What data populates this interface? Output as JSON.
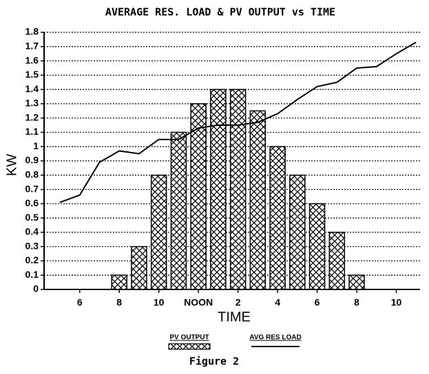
{
  "chart_data": {
    "type": "bar",
    "title": "AVERAGE RES. LOAD & PV OUTPUT vs TIME",
    "xlabel": "TIME",
    "ylabel": "KW",
    "caption": "Figure 2",
    "xlim": [
      4.2,
      23.2
    ],
    "ylim": [
      0,
      1.8
    ],
    "xticks": [
      6,
      8,
      10,
      {
        "value": 12,
        "label": "NOON"
      },
      {
        "value": 14,
        "label": "2"
      },
      {
        "value": 16,
        "label": "4"
      },
      {
        "value": 18,
        "label": "6"
      },
      {
        "value": 20,
        "label": "8"
      },
      {
        "value": 22,
        "label": "10"
      }
    ],
    "yticks": [
      0,
      0.1,
      0.2,
      0.3,
      0.4,
      0.5,
      0.6,
      0.7,
      0.8,
      0.9,
      1,
      1.1,
      1.2,
      1.3,
      1.4,
      1.5,
      1.6,
      1.7,
      1.8
    ],
    "grid": true,
    "series": [
      {
        "name": "PV OUTPUT",
        "type": "bar",
        "color": "#000000",
        "x": [
          8,
          9,
          10,
          11,
          12,
          13,
          14,
          15,
          16,
          17,
          18,
          19,
          20
        ],
        "values": [
          0.1,
          0.3,
          0.8,
          1.1,
          1.3,
          1.4,
          1.4,
          1.25,
          1.0,
          0.8,
          0.6,
          0.4,
          0.1
        ]
      },
      {
        "name": "AVG RES LOAD",
        "type": "line",
        "color": "#000000",
        "x": [
          5,
          6,
          7,
          8,
          9,
          10,
          11,
          12,
          13,
          14,
          15,
          16,
          17,
          18,
          19,
          20,
          21,
          22,
          23
        ],
        "values": [
          0.61,
          0.66,
          0.89,
          0.97,
          0.95,
          1.05,
          1.05,
          1.13,
          1.15,
          1.15,
          1.17,
          1.23,
          1.33,
          1.42,
          1.45,
          1.55,
          1.56,
          1.65,
          1.73
        ]
      }
    ]
  }
}
